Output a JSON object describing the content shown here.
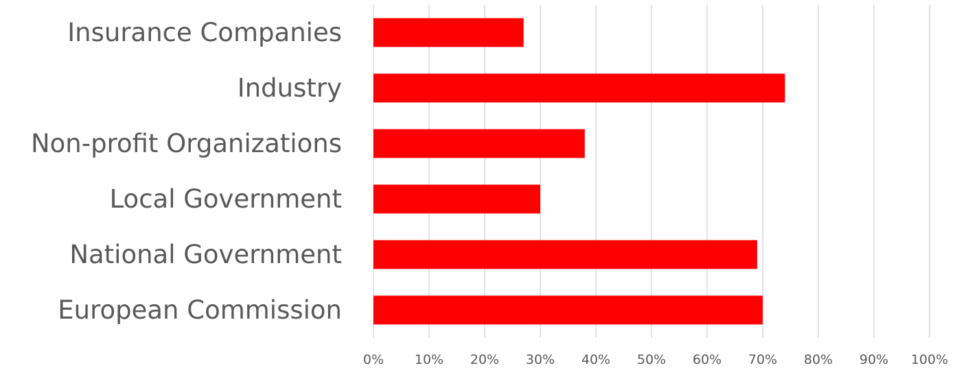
{
  "chart_data": {
    "type": "bar",
    "orientation": "horizontal",
    "categories": [
      "Insurance Companies",
      "Industry",
      "Non-profit Organizations",
      "Local Government",
      "National Government",
      "European Commission"
    ],
    "values": [
      27,
      74,
      38,
      30,
      69,
      70
    ],
    "value_unit": "%",
    "xlim": [
      0,
      100
    ],
    "xticks": [
      0,
      10,
      20,
      30,
      40,
      50,
      60,
      70,
      80,
      90,
      100
    ],
    "xtick_labels": [
      "0%",
      "10%",
      "20%",
      "30%",
      "40%",
      "50%",
      "60%",
      "70%",
      "80%",
      "90%",
      "100%"
    ],
    "title": "",
    "xlabel": "",
    "ylabel": "",
    "grid": "vertical",
    "legend": "none",
    "bar_color": "#ff0000"
  }
}
